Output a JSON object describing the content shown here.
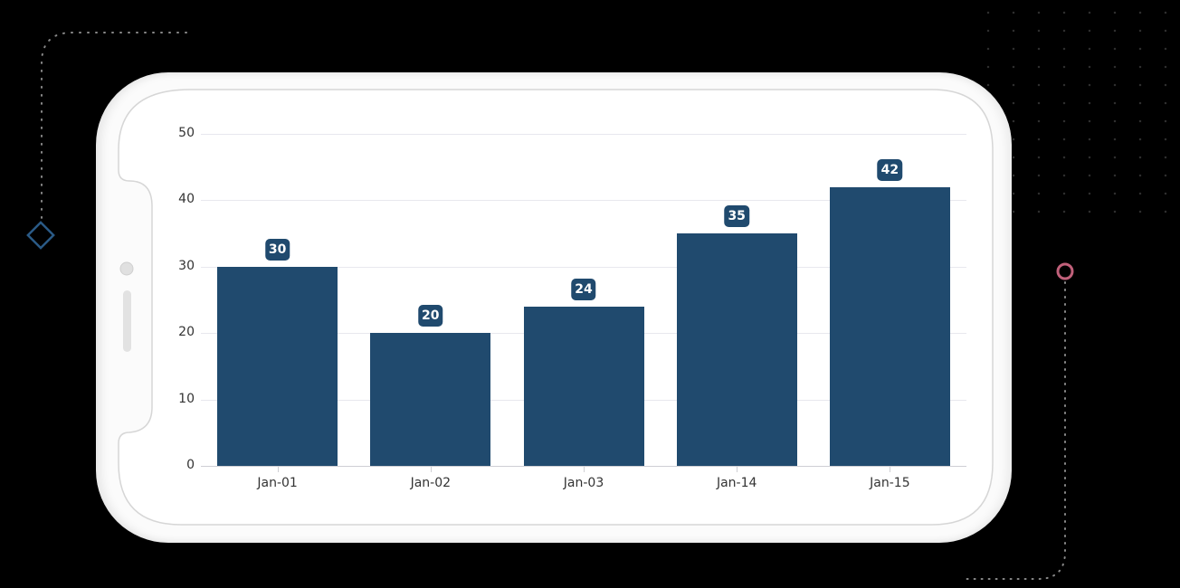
{
  "chart_data": {
    "type": "bar",
    "title": "",
    "xlabel": "",
    "ylabel": "",
    "categories": [
      "Jan-01",
      "Jan-02",
      "Jan-03",
      "Jan-14",
      "Jan-15"
    ],
    "values": [
      30,
      20,
      24,
      35,
      42
    ],
    "data_labels": [
      "30",
      "20",
      "24",
      "35",
      "42"
    ],
    "yticks": [
      "0",
      "10",
      "20",
      "30",
      "40",
      "50"
    ],
    "ylim": [
      0,
      50
    ],
    "grid": true,
    "legend": "none",
    "bar_color": "#204a6e"
  },
  "decor": {
    "diamond_color": "#2a5a86",
    "ring_color": "#c0607a"
  }
}
